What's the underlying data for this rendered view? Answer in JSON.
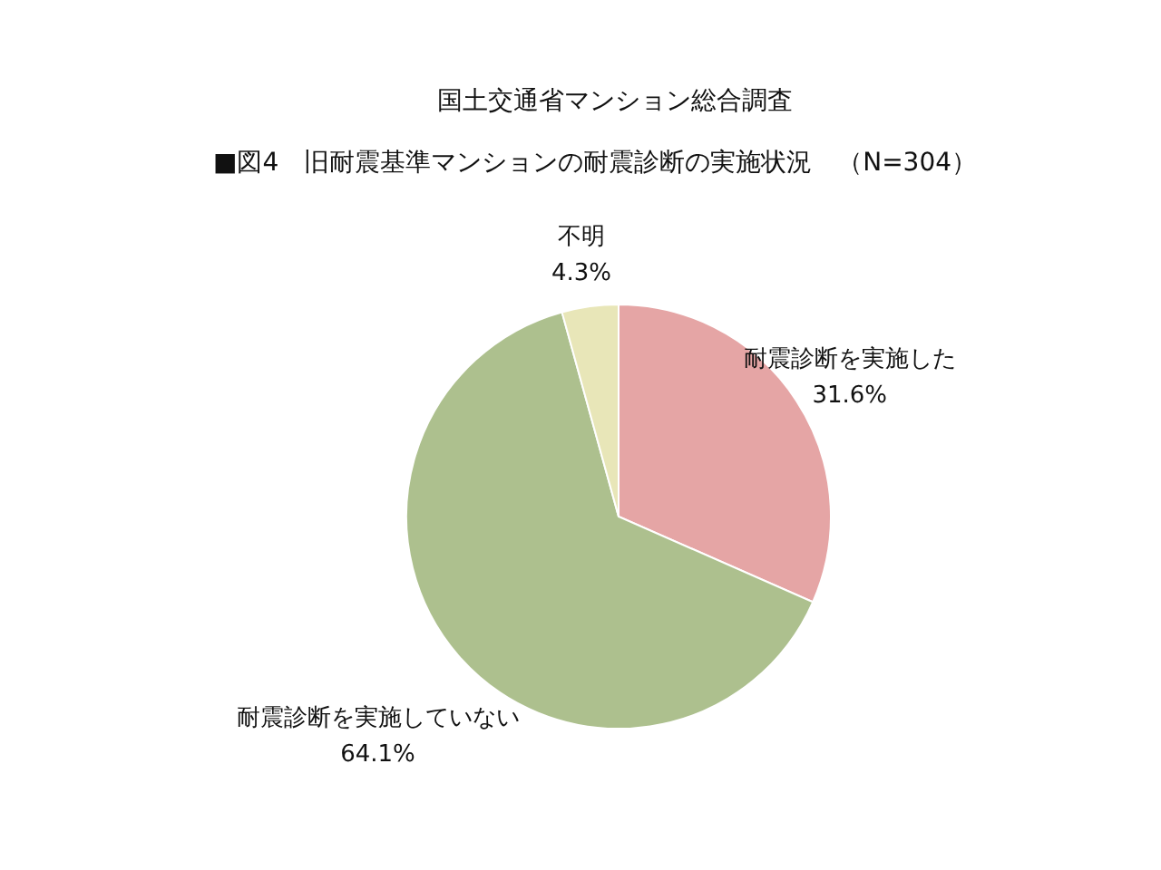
{
  "chart_data": {
    "type": "pie",
    "title": "国土交通省マンション総合調査",
    "subtitle": "■図4　旧耐震基準マンションの耐震診断の実施状況　（N=304）",
    "categories": [
      "耐震診断を実施した",
      "耐震診断を実施していない",
      "不明"
    ],
    "values": [
      31.6,
      64.1,
      4.3
    ],
    "colors": [
      "#e5a5a5",
      "#adc08e",
      "#e8e6b8"
    ],
    "value_labels": [
      "31.6%",
      "64.1%",
      "4.3%"
    ],
    "legend": false
  }
}
